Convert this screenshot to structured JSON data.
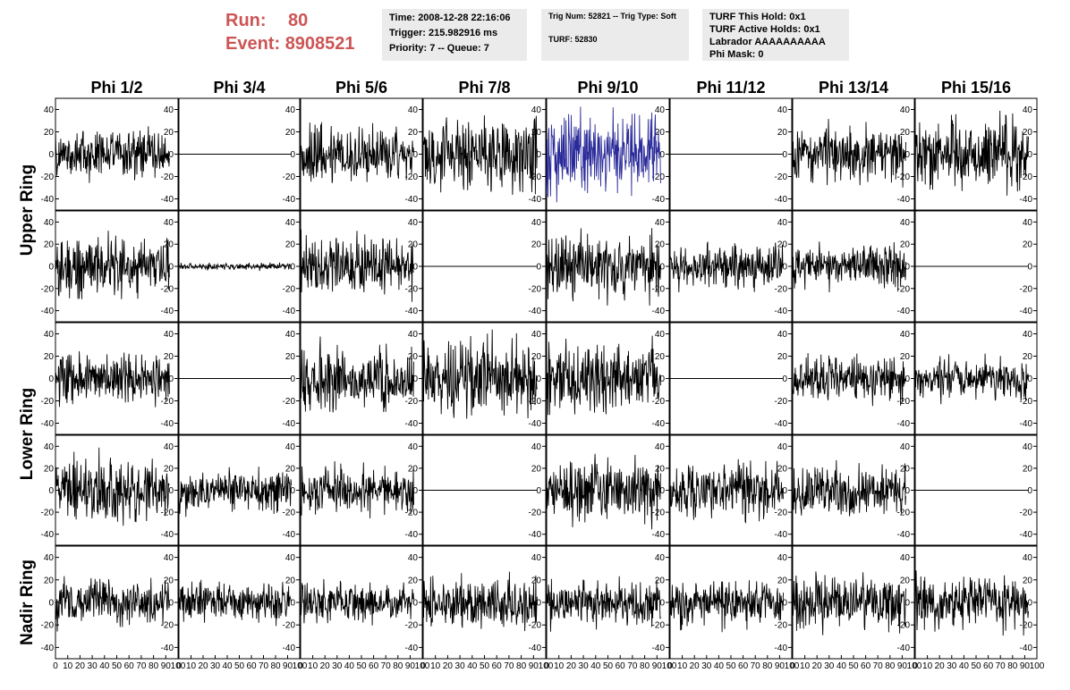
{
  "header": {
    "run_label": "Run:",
    "run_value": "80",
    "event_label": "Event:",
    "event_value": "8908521",
    "time_text": "Time: 2008-12-28 22:16:06",
    "trigger_text": "Trigger: 215.982916 ms",
    "priority_text": "Priority: 7 -- Queue: 7",
    "trig_num_text": "Trig Num: 52821 -- Trig Type: Soft",
    "turf_text": "TURF: 52830",
    "turf_hold_text": "TURF This Hold: 0x1",
    "turf_active_text": "TURF Active Holds: 0x1",
    "labrador_text": "Labrador AAAAAAAAAA",
    "phi_mask_text": "Phi Mask: 0"
  },
  "chart_data": {
    "type": "line",
    "columns": [
      "Phi 1/2",
      "Phi 3/4",
      "Phi 5/6",
      "Phi 7/8",
      "Phi 9/10",
      "Phi 11/12",
      "Phi 13/14",
      "Phi 15/16"
    ],
    "rows": [
      "Upper Ring",
      "Upper Ring",
      "Lower Ring",
      "Lower Ring",
      "Nadir Ring"
    ],
    "row_titles": [
      {
        "text": "Upper Ring",
        "spans_rows": [
          0,
          1
        ]
      },
      {
        "text": "Lower Ring",
        "spans_rows": [
          2,
          3
        ]
      },
      {
        "text": "Nadir Ring",
        "spans_rows": [
          4
        ]
      }
    ],
    "ylim": [
      -50,
      50
    ],
    "y_ticks": [
      "40",
      "20",
      "0",
      "-20",
      "-40"
    ],
    "y_tick_values": [
      40,
      20,
      0,
      -20,
      -40
    ],
    "xlim": [
      0,
      100
    ],
    "x_ticks": [
      "0",
      "10",
      "20",
      "30",
      "40",
      "50",
      "60",
      "70",
      "80",
      "90",
      "100"
    ],
    "x_tick_values": [
      0,
      10,
      20,
      30,
      40,
      50,
      60,
      70,
      80,
      90,
      100
    ],
    "samples_per_trace": 260,
    "trace_color": "#000000",
    "highlight_color": "#2a2a9a",
    "highlight_cell": [
      0,
      4
    ],
    "amplitude": [
      [
        14,
        0,
        17,
        22,
        23,
        0,
        16,
        19
      ],
      [
        17,
        2,
        17,
        0,
        18,
        13,
        12,
        0
      ],
      [
        15,
        0,
        17,
        21,
        20,
        0,
        14,
        11
      ],
      [
        19,
        12,
        14,
        0,
        18,
        16,
        16,
        0
      ],
      [
        13,
        11,
        11,
        14,
        13,
        13,
        15,
        15
      ]
    ]
  }
}
